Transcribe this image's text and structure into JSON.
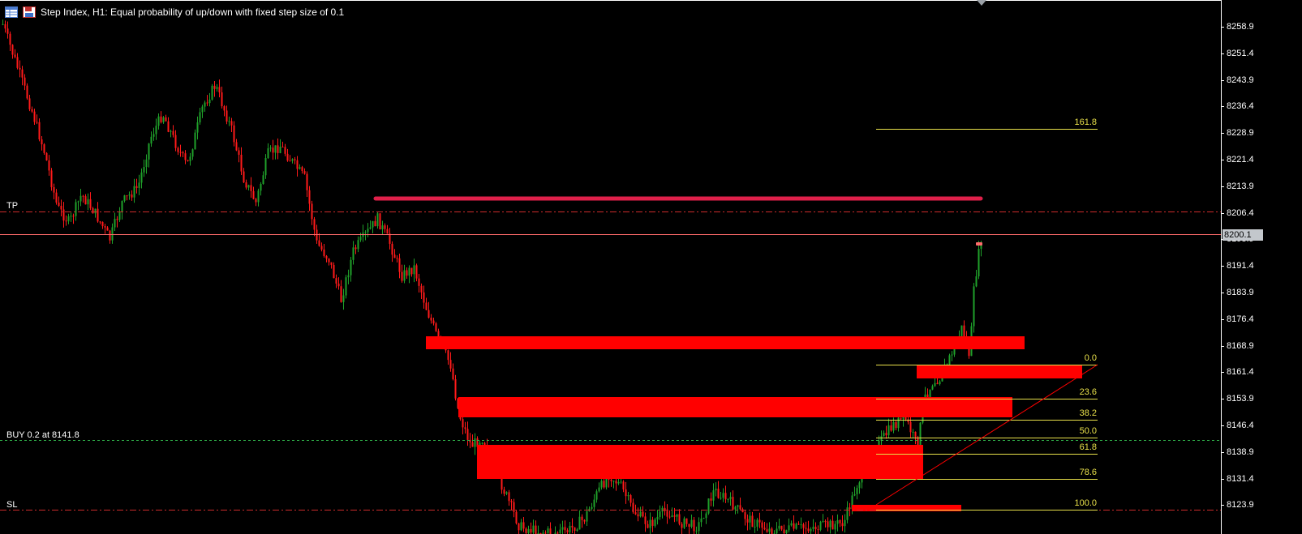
{
  "header": {
    "title": "Step Index, H1:  Equal probability of up/down with fixed step size of 0.1"
  },
  "price_axis": {
    "ticks": [
      "8258.9",
      "8251.4",
      "8243.9",
      "8236.4",
      "8228.9",
      "8221.4",
      "8213.9",
      "8206.4",
      "8198.9",
      "8191.4",
      "8183.9",
      "8176.4",
      "8168.9",
      "8161.4",
      "8153.9",
      "8146.4",
      "8138.9",
      "8131.4",
      "8123.9"
    ],
    "current_price": "8200.1"
  },
  "lines": {
    "tp_label": "TP",
    "buy_label": "BUY 0.2 at 8141.8",
    "sl_label": "SL"
  },
  "fibonacci": {
    "levels": [
      "161.8",
      "0.0",
      "23.6",
      "38.2",
      "50.0",
      "61.8",
      "78.6",
      "100.0"
    ]
  },
  "colors": {
    "background": "#000000",
    "bull_candle": "#1fa12a",
    "bear_candle": "#ff1a1a",
    "zone": "#ff0000",
    "resistance": "#e0204a",
    "fib": "#e8e04a",
    "buy_line": "#2fb34a",
    "tp_sl": "#cc2b2b",
    "current_price_line": "#ff6b6b"
  }
}
